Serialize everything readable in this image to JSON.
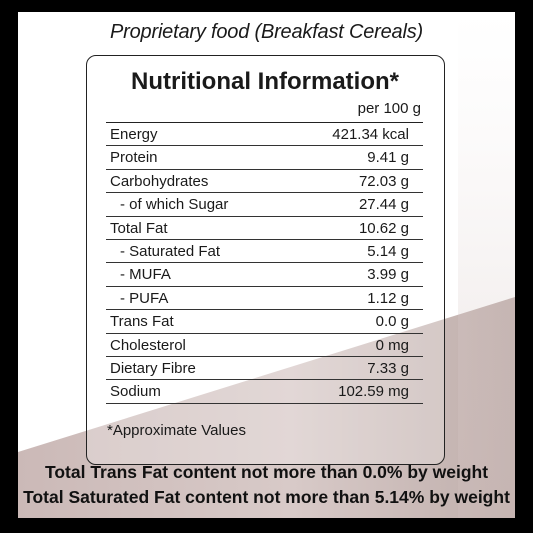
{
  "header_title": "Proprietary food (Breakfast Cereals)",
  "box_title": "Nutritional Information*",
  "per_label": "per 100 g",
  "rows": [
    {
      "name": "Energy",
      "value": "421.34 kcal",
      "sub": false
    },
    {
      "name": "Protein",
      "value": "9.41 g",
      "sub": false
    },
    {
      "name": "Carbohydrates",
      "value": "72.03  g",
      "sub": false
    },
    {
      "name": "- of which Sugar",
      "value": "27.44 g",
      "sub": true
    },
    {
      "name": "Total Fat",
      "value": "10.62 g",
      "sub": false
    },
    {
      "name": "- Saturated Fat",
      "value": "5.14 g",
      "sub": true
    },
    {
      "name": "- MUFA",
      "value": "3.99 g",
      "sub": true
    },
    {
      "name": "- PUFA",
      "value": "1.12 g",
      "sub": true
    },
    {
      "name": "Trans Fat",
      "value": "0.0 g",
      "sub": false
    },
    {
      "name": "Cholesterol",
      "value": "0 mg",
      "sub": false
    },
    {
      "name": "Dietary Fibre",
      "value": "7.33 g",
      "sub": false
    },
    {
      "name": "Sodium",
      "value": "102.59 mg",
      "sub": false
    }
  ],
  "note": "*Approximate Values",
  "footer_lines": [
    "Total Trans Fat content not more than 0.0% by weight",
    "Total Saturated Fat content not more than 5.14% by weight"
  ],
  "colors": {
    "background": "#000000",
    "panel": "#ffffff",
    "wash": "#c9b8b6",
    "text": "#1a1a1a"
  }
}
